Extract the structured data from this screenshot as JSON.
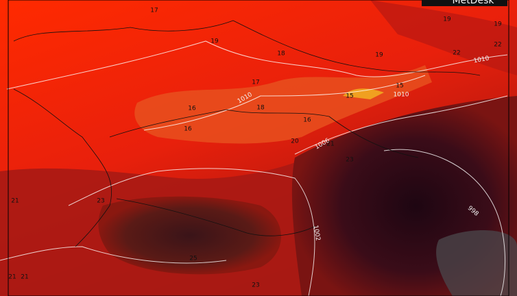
{
  "logo": "MetDesk",
  "contour_labels": [
    "17",
    "19",
    "18",
    "19",
    "19",
    "19",
    "22",
    "22",
    "17",
    "1010",
    "18",
    "16",
    "16",
    "16",
    "15",
    "15",
    "1010",
    "1010",
    "20",
    "1006",
    "21",
    "23",
    "21",
    "23",
    "25",
    "1002",
    "998",
    "23",
    "21",
    "21"
  ]
}
